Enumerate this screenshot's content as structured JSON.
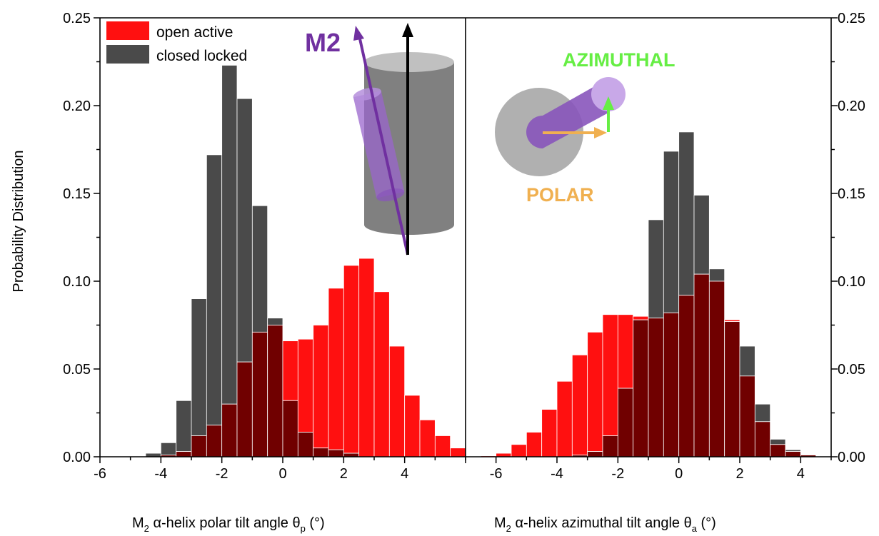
{
  "colors": {
    "open": "#ff1010",
    "closed": "#4a4a4a",
    "overlap": "#700000",
    "m2": "#7030a0",
    "azimuthal": "#66ee44",
    "polar": "#f0b050"
  },
  "ylabel": "Probability Distribution",
  "y_ticks": [
    "0.00",
    "0.05",
    "0.10",
    "0.15",
    "0.20",
    "0.25"
  ],
  "legend": {
    "open": "open active",
    "closed": "closed locked"
  },
  "inset": {
    "left_label": "M2",
    "right_top_label": "AZIMUTHAL",
    "right_bottom_label": "POLAR"
  },
  "chart_data": [
    {
      "type": "bar",
      "name": "polar",
      "xlabel_main": "M",
      "xlabel_sub": "2",
      "xlabel_rest": " α-helix polar tilt angle   θ",
      "xlabel_sub2": "p",
      "xlabel_end": " (°)",
      "xlim": [
        -6,
        6
      ],
      "ylim": [
        0,
        0.25
      ],
      "x_ticks": [
        "-6",
        "-4",
        "-2",
        "0",
        "2",
        "4"
      ],
      "bin_width": 0.5,
      "bin_starts": [
        -4.5,
        -4.0,
        -3.5,
        -3.0,
        -2.5,
        -2.0,
        -1.5,
        -1.0,
        -0.5,
        0.0,
        0.5,
        1.0,
        1.5,
        2.0,
        2.5,
        3.0,
        3.5,
        4.0,
        4.5,
        5.0,
        5.5
      ],
      "series": [
        {
          "name": "open active",
          "values": [
            0.0,
            0.001,
            0.003,
            0.012,
            0.018,
            0.03,
            0.054,
            0.071,
            0.075,
            0.066,
            0.067,
            0.075,
            0.096,
            0.109,
            0.113,
            0.094,
            0.063,
            0.035,
            0.021,
            0.012,
            0.005
          ]
        },
        {
          "name": "closed locked",
          "values": [
            0.002,
            0.008,
            0.032,
            0.09,
            0.172,
            0.223,
            0.204,
            0.143,
            0.079,
            0.032,
            0.014,
            0.005,
            0.004,
            0.002,
            0.0,
            0.0,
            0.0,
            0.0,
            0.0,
            0.0,
            0.0
          ]
        }
      ]
    },
    {
      "type": "bar",
      "name": "azimuthal",
      "xlabel_main": "M",
      "xlabel_sub": "2",
      "xlabel_rest": " α-helix azimuthal tilt angle   θ",
      "xlabel_sub2": "a",
      "xlabel_end": " (°)",
      "xlim": [
        -7,
        5
      ],
      "ylim": [
        0,
        0.25
      ],
      "x_ticks": [
        "-6",
        "-4",
        "-2",
        "0",
        "2",
        "4"
      ],
      "bin_width": 0.5,
      "bin_starts": [
        -6.5,
        -6.0,
        -5.5,
        -5.0,
        -4.5,
        -4.0,
        -3.5,
        -3.0,
        -2.5,
        -2.0,
        -1.5,
        -1.0,
        -0.5,
        0.0,
        0.5,
        1.0,
        1.5,
        2.0,
        2.5,
        3.0,
        3.5,
        4.0
      ],
      "series": [
        {
          "name": "open active",
          "values": [
            0.0005,
            0.002,
            0.007,
            0.014,
            0.027,
            0.043,
            0.058,
            0.071,
            0.081,
            0.081,
            0.08,
            0.079,
            0.082,
            0.092,
            0.104,
            0.1,
            0.078,
            0.046,
            0.02,
            0.007,
            0.003,
            0.001
          ]
        },
        {
          "name": "closed locked",
          "values": [
            0.0,
            0.0,
            0.0,
            0.0,
            0.0,
            0.0,
            0.001,
            0.003,
            0.012,
            0.039,
            0.078,
            0.135,
            0.174,
            0.185,
            0.149,
            0.107,
            0.077,
            0.063,
            0.03,
            0.01,
            0.004,
            0.001
          ]
        }
      ]
    }
  ]
}
